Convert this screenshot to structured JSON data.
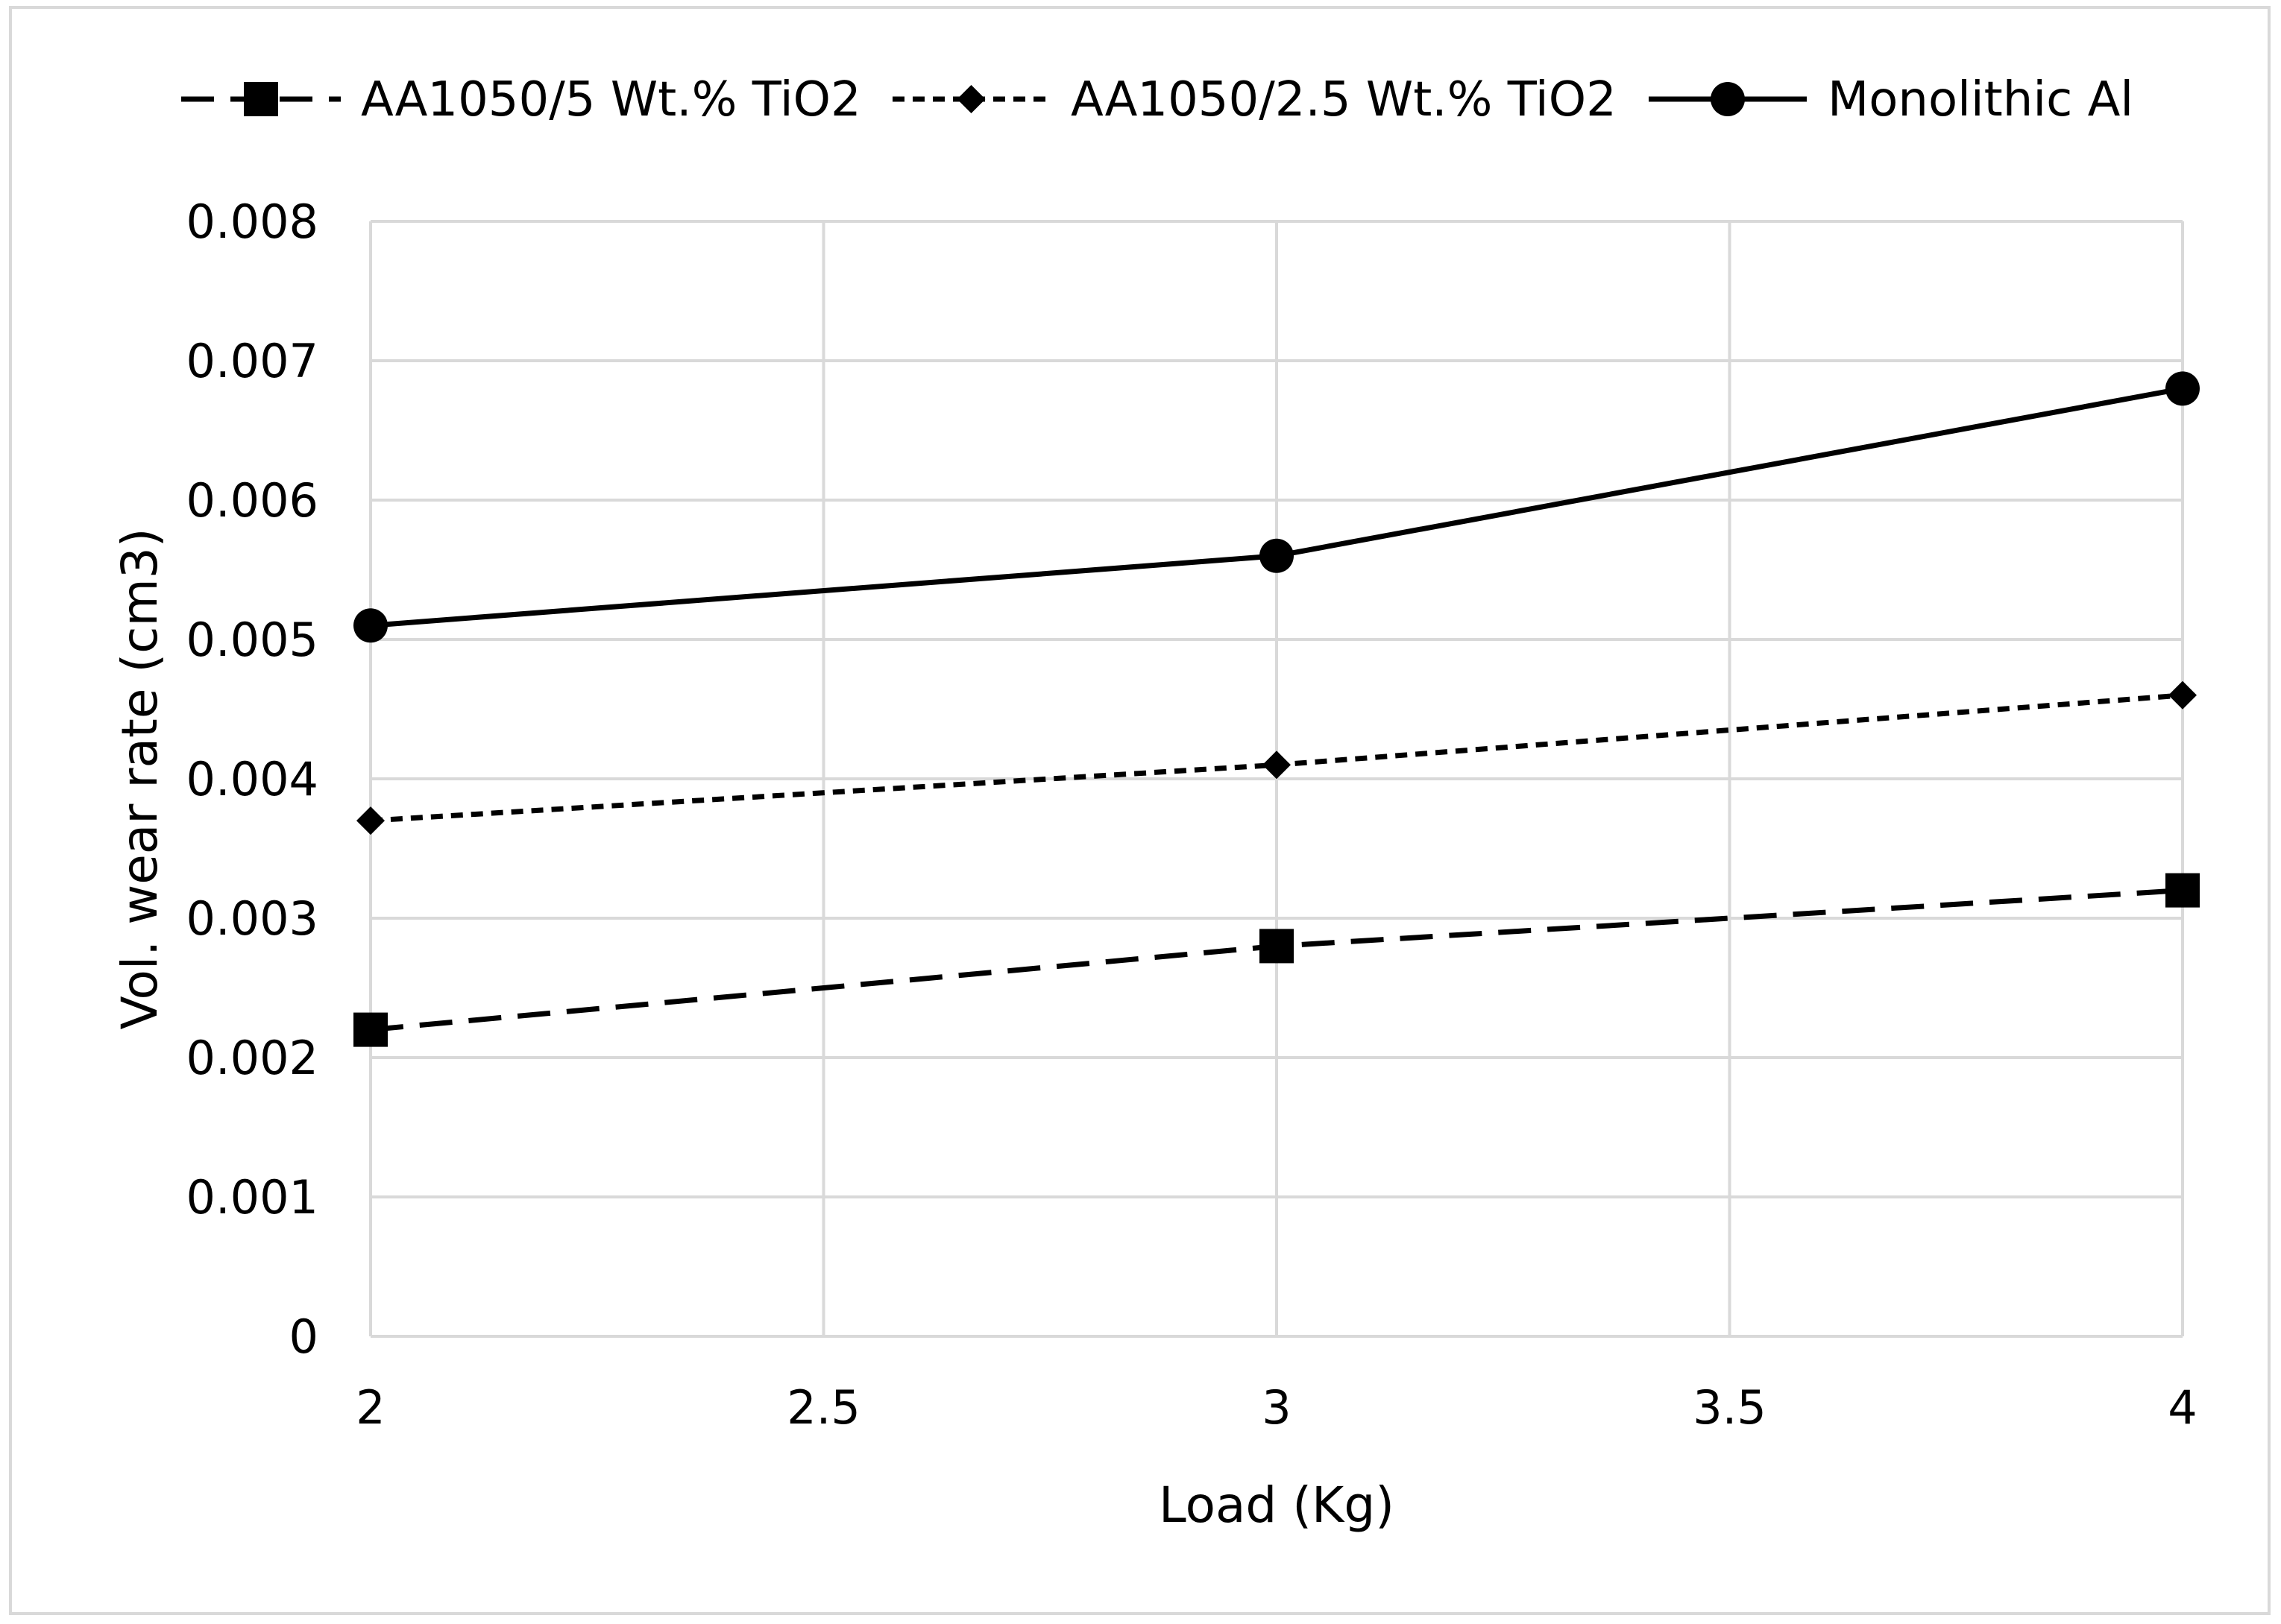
{
  "chart_data": {
    "type": "line",
    "title": "",
    "xlabel": "Load (Kg)",
    "ylabel": "Vol. wear rate (cm3)",
    "x": [
      2,
      3,
      4
    ],
    "xlim": [
      2,
      4
    ],
    "ylim": [
      0,
      0.008
    ],
    "xticks": [
      2,
      2.5,
      3,
      3.5,
      4
    ],
    "xtick_labels": [
      "2",
      "2.5",
      "3",
      "3.5",
      "4"
    ],
    "yticks": [
      0,
      0.001,
      0.002,
      0.003,
      0.004,
      0.005,
      0.006,
      0.007,
      0.008
    ],
    "ytick_labels": [
      "0",
      "0.001",
      "0.002",
      "0.003",
      "0.004",
      "0.005",
      "0.006",
      "0.007",
      "0.008"
    ],
    "grid": true,
    "legend_position": "top",
    "series": [
      {
        "name": "AA1050/5 Wt.% TiO2",
        "values": [
          0.0022,
          0.0028,
          0.0032
        ],
        "line_style": "long-dash",
        "marker": "square",
        "color": "#000000"
      },
      {
        "name": "AA1050/2.5 Wt.% TiO2",
        "values": [
          0.0037,
          0.0041,
          0.0046
        ],
        "line_style": "short-dash",
        "marker": "diamond",
        "color": "#000000"
      },
      {
        "name": "Monolithic Al",
        "values": [
          0.0051,
          0.0056,
          0.0068
        ],
        "line_style": "solid",
        "marker": "circle",
        "color": "#000000"
      }
    ]
  }
}
